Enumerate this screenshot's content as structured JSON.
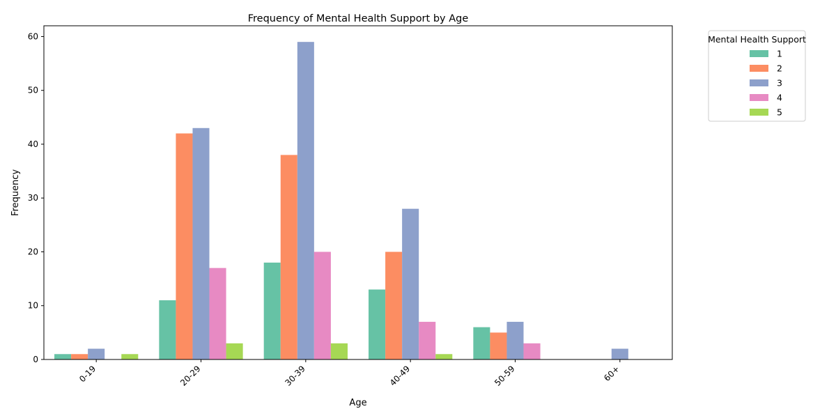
{
  "chart_data": {
    "type": "bar",
    "title": "Frequency of Mental Health Support by Age",
    "xlabel": "Age",
    "ylabel": "Frequency",
    "categories": [
      "0-19",
      "20-29",
      "30-39",
      "40-49",
      "50-59",
      "60+"
    ],
    "ylim": [
      0,
      62
    ],
    "yticks": [
      0,
      10,
      20,
      30,
      40,
      50,
      60
    ],
    "grid": false,
    "legend": {
      "title": "Mental Health Support",
      "placement": "outside-top-right"
    },
    "series": [
      {
        "name": "1",
        "color": "#66c2a5",
        "values": [
          1,
          11,
          18,
          13,
          6,
          0
        ]
      },
      {
        "name": "2",
        "color": "#fc8d62",
        "values": [
          1,
          42,
          38,
          20,
          5,
          0
        ]
      },
      {
        "name": "3",
        "color": "#8da0cb",
        "values": [
          2,
          43,
          59,
          28,
          7,
          2
        ]
      },
      {
        "name": "4",
        "color": "#e78ac3",
        "values": [
          0,
          17,
          20,
          7,
          3,
          0
        ]
      },
      {
        "name": "5",
        "color": "#a6d854",
        "values": [
          1,
          3,
          3,
          1,
          0,
          0
        ]
      }
    ]
  }
}
